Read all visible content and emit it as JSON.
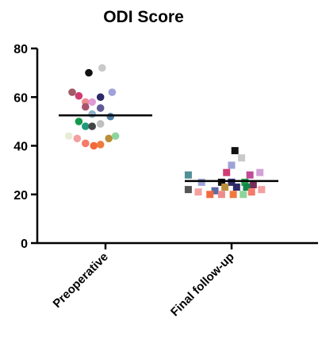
{
  "chart_data": {
    "type": "scatter",
    "title": "ODI Score",
    "xlabel": "",
    "ylabel": "",
    "ylim": [
      0,
      80
    ],
    "yticks": [
      0,
      20,
      40,
      60,
      80
    ],
    "grid": false,
    "legend": "none",
    "categories": [
      "Preoperative",
      "Final follow-up"
    ],
    "groups": [
      {
        "category": "Preoperative",
        "marker": "circle",
        "mean": 52.5,
        "points": [
          {
            "offset": -5,
            "y": 70,
            "color": "#111111"
          },
          {
            "offset": -1,
            "y": 72,
            "color": "#c9c9c9"
          },
          {
            "offset": -10,
            "y": 62,
            "color": "#a05a68"
          },
          {
            "offset": -8,
            "y": 60.5,
            "color": "#cf3c74"
          },
          {
            "offset": -1.5,
            "y": 60,
            "color": "#2c2a66"
          },
          {
            "offset": 2,
            "y": 62,
            "color": "#9ea2d8"
          },
          {
            "offset": -6,
            "y": 58,
            "color": "#ee8b8b"
          },
          {
            "offset": -4,
            "y": 58,
            "color": "#e09ad8"
          },
          {
            "offset": -6,
            "y": 56,
            "color": "#a8546f"
          },
          {
            "offset": -1.5,
            "y": 55.5,
            "color": "#5f5c95"
          },
          {
            "offset": -4,
            "y": 53,
            "color": "#8fb1c9"
          },
          {
            "offset": 1.5,
            "y": 52,
            "color": "#4b7ea8"
          },
          {
            "offset": -8,
            "y": 50,
            "color": "#129a4c"
          },
          {
            "offset": -6,
            "y": 48,
            "color": "#1f9a7c"
          },
          {
            "offset": -4,
            "y": 48,
            "color": "#444444"
          },
          {
            "offset": -1.5,
            "y": 49,
            "color": "#bfbfbf"
          },
          {
            "offset": -11,
            "y": 44,
            "color": "#e8ecd4"
          },
          {
            "offset": -8.5,
            "y": 43,
            "color": "#f3a0a0"
          },
          {
            "offset": 1,
            "y": 43,
            "color": "#bb8f3a"
          },
          {
            "offset": 3,
            "y": 44,
            "color": "#8fd49b"
          },
          {
            "offset": -6,
            "y": 41,
            "color": "#f47a6a"
          },
          {
            "offset": -3.5,
            "y": 40,
            "color": "#f26a3c"
          },
          {
            "offset": -1.5,
            "y": 40.5,
            "color": "#f07a3e"
          }
        ]
      },
      {
        "category": "Final follow-up",
        "marker": "square",
        "mean": 25.5,
        "points": [
          {
            "offset": 1,
            "y": 38,
            "color": "#111111"
          },
          {
            "offset": 3,
            "y": 35,
            "color": "#c9c9c9"
          },
          {
            "offset": 0,
            "y": 32,
            "color": "#9ea2d8"
          },
          {
            "offset": -1.5,
            "y": 29,
            "color": "#cf3c74"
          },
          {
            "offset": 5.5,
            "y": 28,
            "color": "#c04a96"
          },
          {
            "offset": 8.5,
            "y": 29,
            "color": "#d4a0d8"
          },
          {
            "offset": -13,
            "y": 28,
            "color": "#4f8f95"
          },
          {
            "offset": -9,
            "y": 25,
            "color": "#9ea2d8"
          },
          {
            "offset": -3,
            "y": 25,
            "color": "#111111"
          },
          {
            "offset": 0,
            "y": 25,
            "color": "#2b2b6b"
          },
          {
            "offset": 4,
            "y": 25,
            "color": "#2a9d4e"
          },
          {
            "offset": 6.5,
            "y": 24,
            "color": "#7a2a5a"
          },
          {
            "offset": -13,
            "y": 22,
            "color": "#555555"
          },
          {
            "offset": -10,
            "y": 21,
            "color": "#f3a0a0"
          },
          {
            "offset": -5,
            "y": 21.5,
            "color": "#5c6aa3"
          },
          {
            "offset": -2,
            "y": 23,
            "color": "#bb8f3a"
          },
          {
            "offset": 1.5,
            "y": 23,
            "color": "#2c2a66"
          },
          {
            "offset": 4.5,
            "y": 23,
            "color": "#13874a"
          },
          {
            "offset": -6.5,
            "y": 20,
            "color": "#f26a3c"
          },
          {
            "offset": -3,
            "y": 20,
            "color": "#ee8b8b"
          },
          {
            "offset": 0.5,
            "y": 20,
            "color": "#f07a3e"
          },
          {
            "offset": 3.5,
            "y": 20,
            "color": "#8fd49b"
          },
          {
            "offset": 6,
            "y": 21,
            "color": "#f47a6a"
          },
          {
            "offset": 9,
            "y": 22,
            "color": "#f3a0a0"
          }
        ]
      }
    ]
  }
}
